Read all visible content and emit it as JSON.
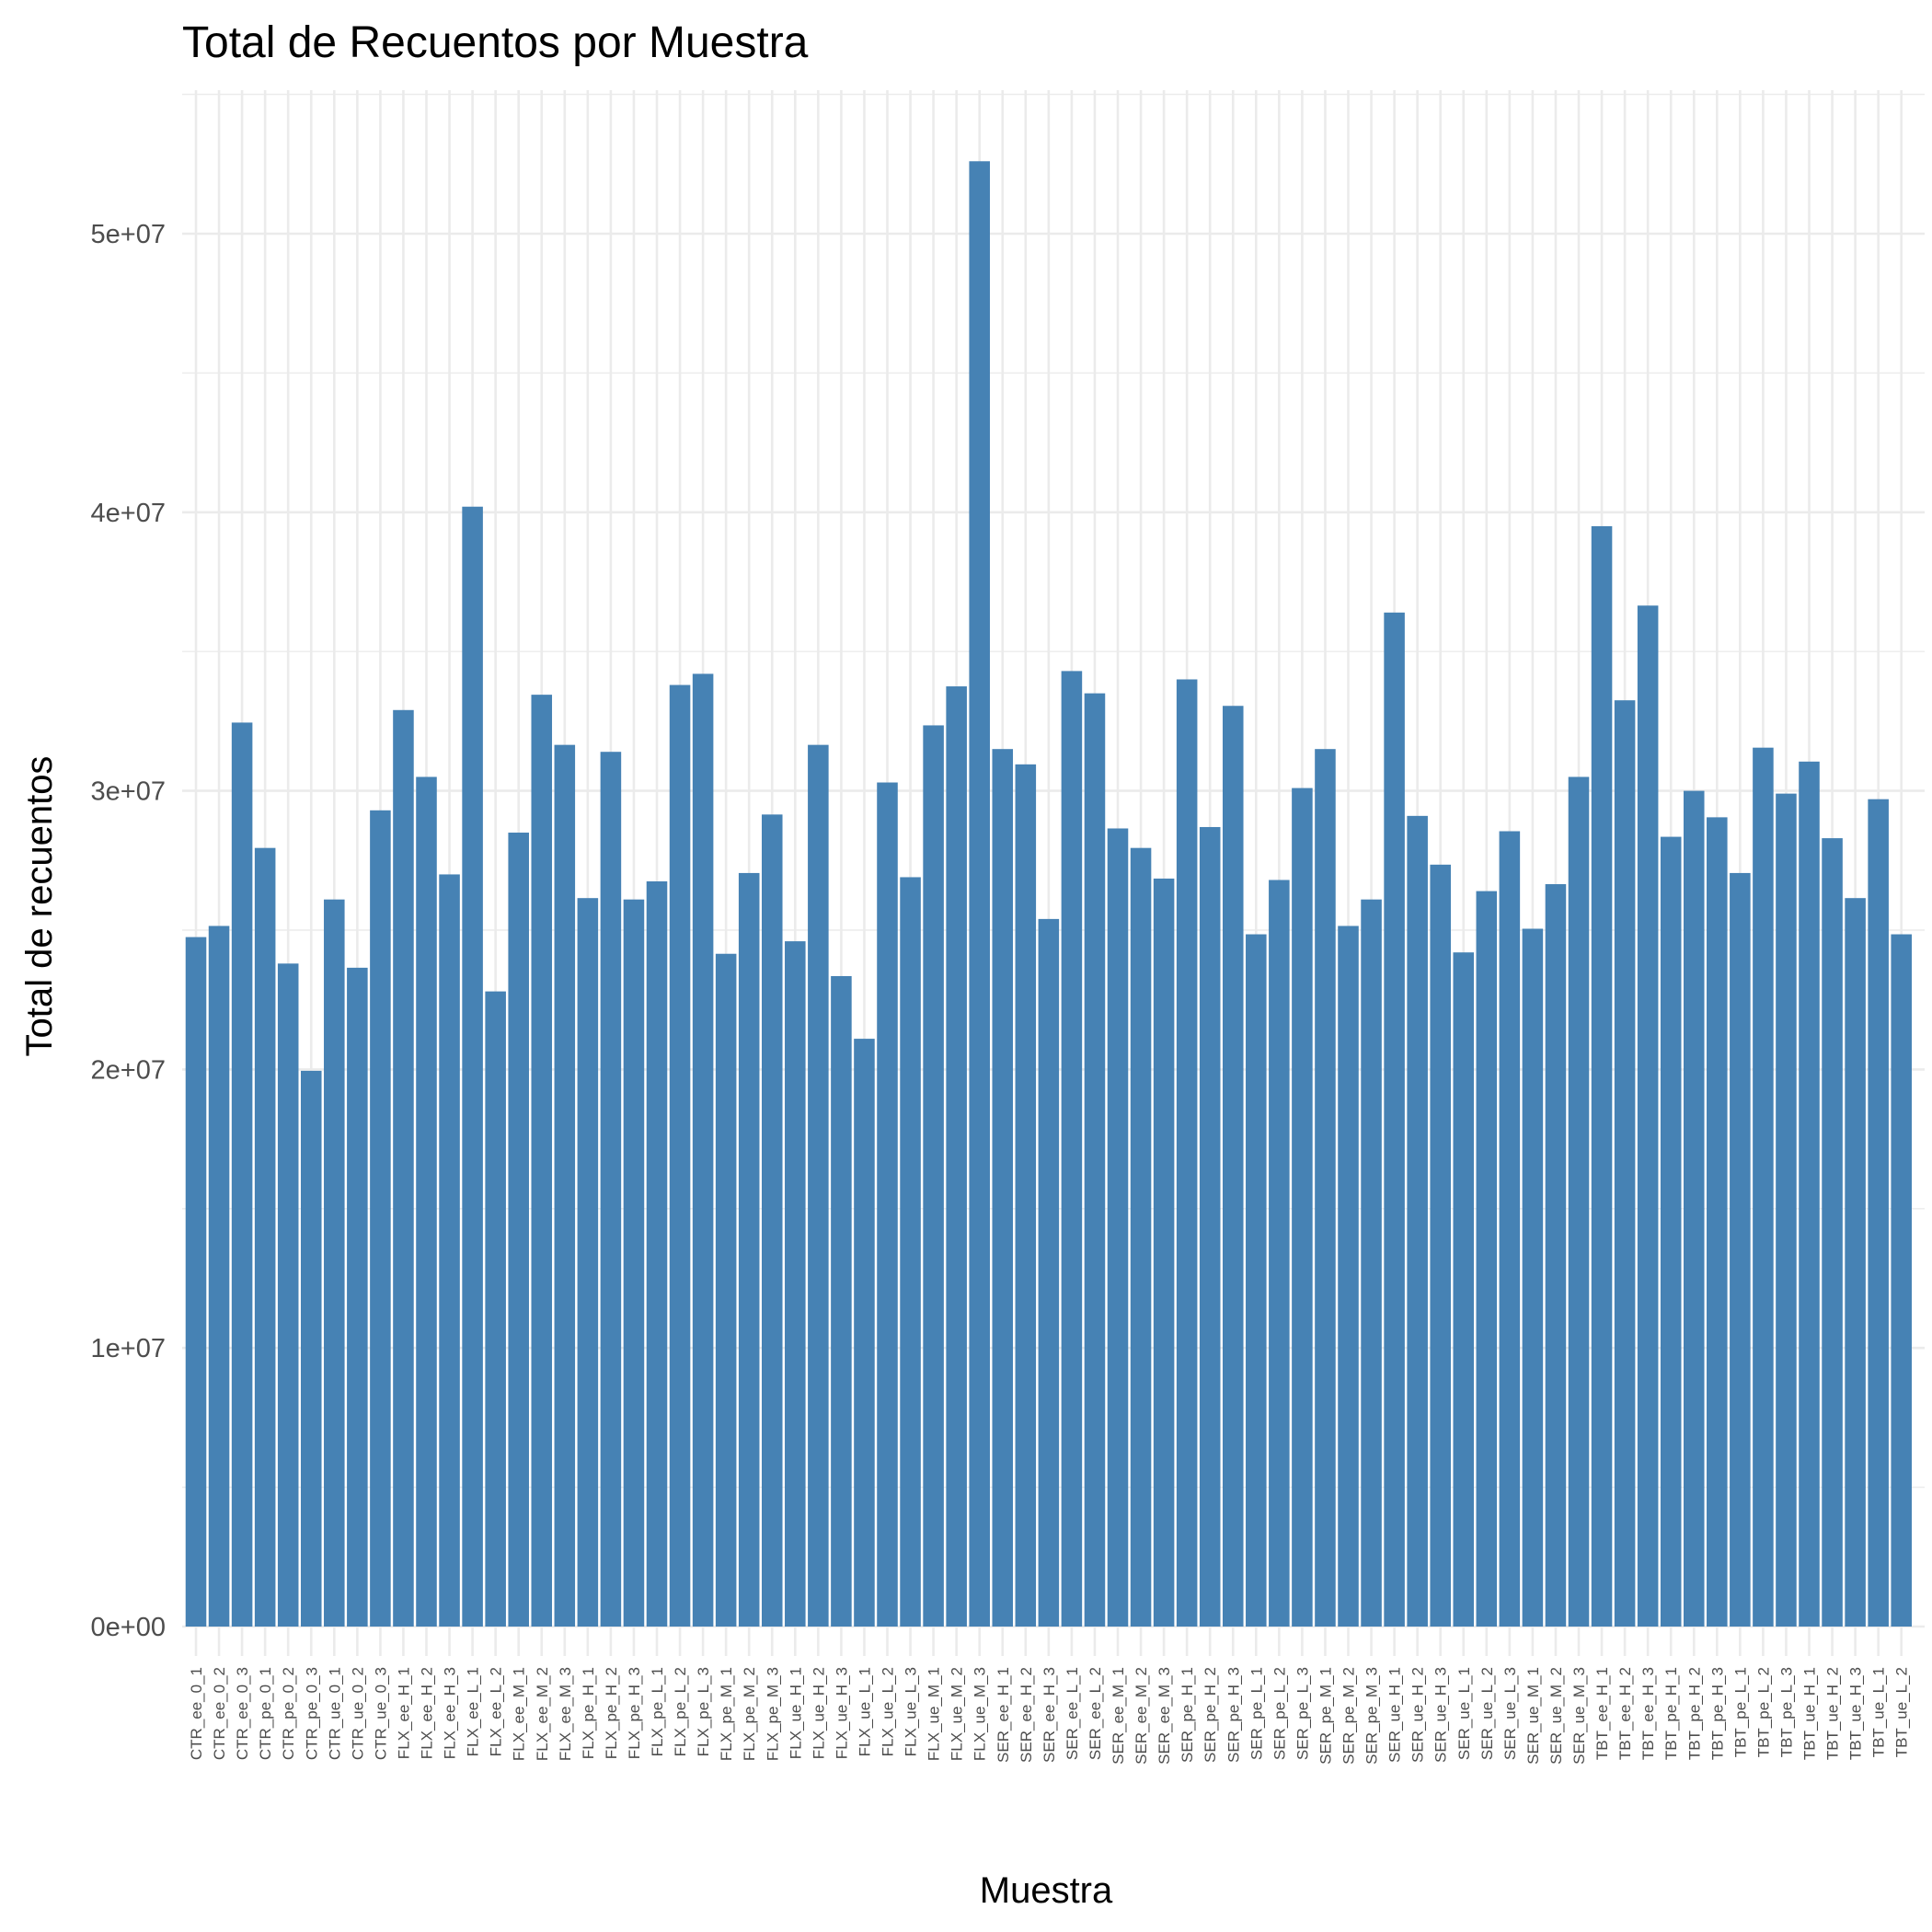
{
  "chart_data": {
    "type": "bar",
    "title": "Total de Recuentos por Muestra",
    "xlabel": "Muestra",
    "ylabel": "Total de recuentos",
    "ylim": [
      0,
      55000000
    ],
    "yticks": [
      0,
      10000000,
      20000000,
      30000000,
      40000000,
      50000000
    ],
    "ytick_labels": [
      "0e+00",
      "1e+07",
      "2e+07",
      "3e+07",
      "4e+07",
      "5e+07"
    ],
    "grid": true,
    "bar_color": "#4682B4",
    "categories": [
      "CTR_ee_0_1",
      "CTR_ee_0_2",
      "CTR_ee_0_3",
      "CTR_pe_0_1",
      "CTR_pe_0_2",
      "CTR_pe_0_3",
      "CTR_ue_0_1",
      "CTR_ue_0_2",
      "CTR_ue_0_3",
      "FLX_ee_H_1",
      "FLX_ee_H_2",
      "FLX_ee_H_3",
      "FLX_ee_L_1",
      "FLX_ee_L_2",
      "FLX_ee_M_1",
      "FLX_ee_M_2",
      "FLX_ee_M_3",
      "FLX_pe_H_1",
      "FLX_pe_H_2",
      "FLX_pe_H_3",
      "FLX_pe_L_1",
      "FLX_pe_L_2",
      "FLX_pe_L_3",
      "FLX_pe_M_1",
      "FLX_pe_M_2",
      "FLX_pe_M_3",
      "FLX_ue_H_1",
      "FLX_ue_H_2",
      "FLX_ue_H_3",
      "FLX_ue_L_1",
      "FLX_ue_L_2",
      "FLX_ue_L_3",
      "FLX_ue_M_1",
      "FLX_ue_M_2",
      "FLX_ue_M_3",
      "SER_ee_H_1",
      "SER_ee_H_2",
      "SER_ee_H_3",
      "SER_ee_L_1",
      "SER_ee_L_2",
      "SER_ee_M_1",
      "SER_ee_M_2",
      "SER_ee_M_3",
      "SER_pe_H_1",
      "SER_pe_H_2",
      "SER_pe_H_3",
      "SER_pe_L_1",
      "SER_pe_L_2",
      "SER_pe_L_3",
      "SER_pe_M_1",
      "SER_pe_M_2",
      "SER_pe_M_3",
      "SER_ue_H_1",
      "SER_ue_H_2",
      "SER_ue_H_3",
      "SER_ue_L_1",
      "SER_ue_L_2",
      "SER_ue_L_3",
      "SER_ue_M_1",
      "SER_ue_M_2",
      "SER_ue_M_3",
      "TBT_ee_H_1",
      "TBT_ee_H_2",
      "TBT_ee_H_3",
      "TBT_pe_H_1",
      "TBT_pe_H_2",
      "TBT_pe_H_3",
      "TBT_pe_L_1",
      "TBT_pe_L_2",
      "TBT_pe_L_3",
      "TBT_ue_H_1",
      "TBT_ue_H_2",
      "TBT_ue_H_3",
      "TBT_ue_L_1",
      "TBT_ue_L_2"
    ],
    "values": [
      24750000,
      25150000,
      32450000,
      27950000,
      23800000,
      19950000,
      26100000,
      23650000,
      29300000,
      32900000,
      30500000,
      27000000,
      40200000,
      22800000,
      28500000,
      33450000,
      31650000,
      26150000,
      31400000,
      26100000,
      26750000,
      33800000,
      34200000,
      24150000,
      27050000,
      29150000,
      24600000,
      31650000,
      23350000,
      21100000,
      30300000,
      26900000,
      32350000,
      33750000,
      52600000,
      31500000,
      30950000,
      25400000,
      34300000,
      33500000,
      28650000,
      27950000,
      26850000,
      34000000,
      28700000,
      33050000,
      24850000,
      26800000,
      30100000,
      31500000,
      25150000,
      26100000,
      36400000,
      29100000,
      27350000,
      24200000,
      26400000,
      28550000,
      25050000,
      26650000,
      30500000,
      39500000,
      33250000,
      36650000,
      28350000,
      30000000,
      29050000,
      27050000,
      31550000,
      29900000,
      31050000,
      28300000,
      26150000,
      29700000,
      24850000
    ]
  }
}
